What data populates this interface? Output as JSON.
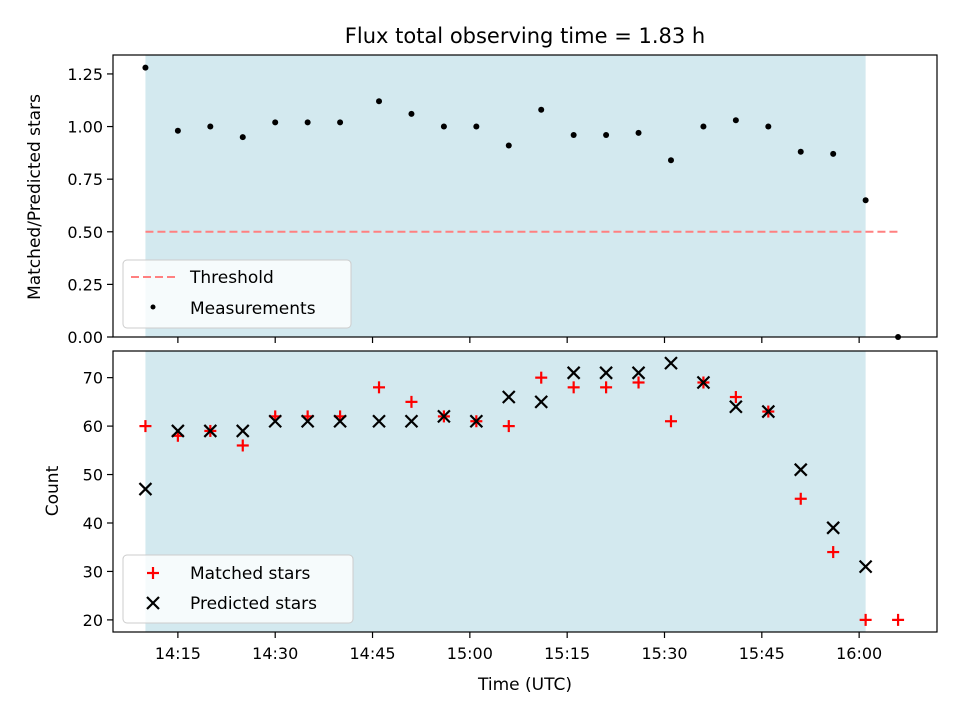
{
  "chart_data": [
    {
      "type": "scatter",
      "title": "Flux total observing time = 1.83 h",
      "xlabel": "",
      "ylabel": "Matched/Predicted stars",
      "ylim": [
        0,
        1.34
      ],
      "yticks": [
        "0.00",
        "0.25",
        "0.50",
        "0.75",
        "1.00",
        "1.25"
      ],
      "shaded_span": [
        "14:10",
        "16:01"
      ],
      "threshold": {
        "name": "Threshold",
        "value": 0.5,
        "x_range": [
          "14:10",
          "16:06"
        ],
        "color": "#ff8080"
      },
      "series": [
        {
          "name": "Measurements",
          "color": "#000000",
          "x": [
            "14:10",
            "14:15",
            "14:20",
            "14:25",
            "14:30",
            "14:35",
            "14:40",
            "14:46",
            "14:51",
            "14:56",
            "15:01",
            "15:06",
            "15:11",
            "15:16",
            "15:21",
            "15:26",
            "15:31",
            "15:36",
            "15:41",
            "15:46",
            "15:51",
            "15:56",
            "16:01",
            "16:06"
          ],
          "values": [
            1.28,
            0.98,
            1.0,
            0.95,
            1.02,
            1.02,
            1.02,
            1.12,
            1.06,
            1.0,
            1.0,
            0.91,
            1.08,
            0.96,
            0.96,
            0.97,
            0.84,
            1.0,
            1.03,
            1.0,
            0.88,
            0.87,
            0.65,
            0.0
          ]
        }
      ],
      "legend": "lower-left"
    },
    {
      "type": "scatter",
      "xlabel": "Time (UTC)",
      "ylabel": "Count",
      "ylim": [
        17.5,
        75.5
      ],
      "yticks": [
        20,
        30,
        40,
        50,
        60,
        70
      ],
      "xticks": [
        "14:15",
        "14:30",
        "14:45",
        "15:00",
        "15:15",
        "15:30",
        "15:45",
        "16:00"
      ],
      "shaded_span": [
        "14:10",
        "16:01"
      ],
      "series": [
        {
          "name": "Matched stars",
          "marker": "+",
          "color": "#ff0000",
          "x": [
            "14:10",
            "14:15",
            "14:20",
            "14:25",
            "14:30",
            "14:35",
            "14:40",
            "14:46",
            "14:51",
            "14:56",
            "15:01",
            "15:06",
            "15:11",
            "15:16",
            "15:21",
            "15:26",
            "15:31",
            "15:36",
            "15:41",
            "15:46",
            "15:51",
            "15:56",
            "16:01",
            "16:06"
          ],
          "values": [
            60,
            58,
            59,
            56,
            62,
            62,
            62,
            68,
            65,
            62,
            61,
            60,
            70,
            68,
            68,
            69,
            61,
            69,
            66,
            63,
            45,
            34,
            20,
            20
          ]
        },
        {
          "name": "Predicted stars",
          "marker": "x",
          "color": "#000000",
          "x": [
            "14:10",
            "14:15",
            "14:20",
            "14:25",
            "14:30",
            "14:35",
            "14:40",
            "14:46",
            "14:51",
            "14:56",
            "15:01",
            "15:06",
            "15:11",
            "15:16",
            "15:21",
            "15:26",
            "15:31",
            "15:36",
            "15:41",
            "15:46",
            "15:51",
            "15:56",
            "16:01"
          ],
          "values": [
            47,
            59,
            59,
            59,
            61,
            61,
            61,
            61,
            61,
            62,
            61,
            66,
            65,
            71,
            71,
            71,
            73,
            69,
            64,
            63,
            51,
            39,
            31
          ]
        }
      ],
      "legend": "lower-left"
    }
  ],
  "colors": {
    "shade": "#d3e9ef",
    "threshold": "#ff8080",
    "matched": "#ff0000",
    "predicted": "#000000"
  }
}
